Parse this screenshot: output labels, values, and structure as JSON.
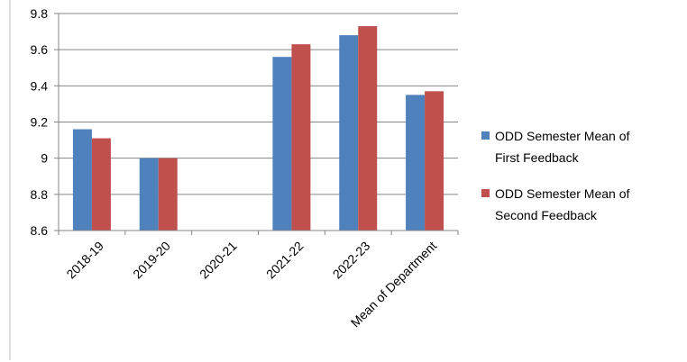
{
  "chart_data": {
    "type": "bar",
    "categories": [
      "2018-19",
      "2019-20",
      "2020-21",
      "2021-22",
      "2022-23",
      "Mean of Department"
    ],
    "series": [
      {
        "name": "ODD Semester Mean of First Feedback",
        "values": [
          9.16,
          9.0,
          null,
          9.56,
          9.68,
          9.35
        ],
        "color": "#4F81BD"
      },
      {
        "name": "ODD Semester Mean of Second Feedback",
        "values": [
          9.11,
          9.0,
          null,
          9.63,
          9.73,
          9.37
        ],
        "color": "#C0504D"
      }
    ],
    "yticks": [
      "8.6",
      "8.8",
      "9",
      "9.2",
      "9.4",
      "9.6",
      "9.8"
    ],
    "ylim": [
      8.6,
      9.8
    ],
    "grid": true,
    "legend_position": "right"
  }
}
